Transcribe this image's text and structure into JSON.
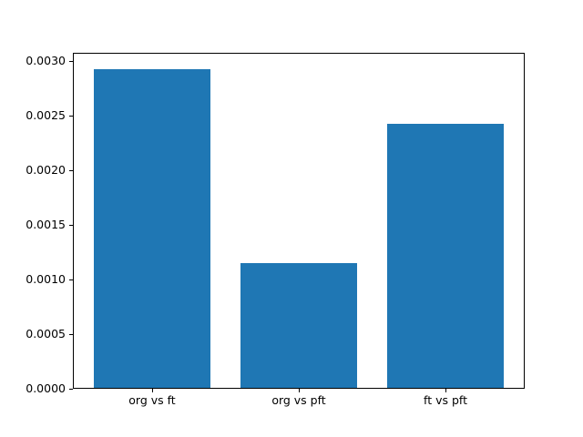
{
  "chart_data": {
    "type": "bar",
    "title": "",
    "xlabel": "",
    "ylabel": "",
    "categories": [
      "org vs ft",
      "org vs pft",
      "ft vs pft"
    ],
    "values": [
      0.00293,
      0.00115,
      0.00243
    ],
    "bar_color": "#1f77b4",
    "spine_color": "#000000",
    "background_color": "#ffffff",
    "ylim": [
      0,
      0.003077
    ],
    "yticks": [
      0.0,
      0.0005,
      0.001,
      0.0015,
      0.002,
      0.0025,
      0.003
    ],
    "ytick_labels": [
      "0.0000",
      "0.0005",
      "0.0010",
      "0.0015",
      "0.0020",
      "0.0025",
      "0.0030"
    ],
    "grid": false,
    "legend": "none"
  }
}
